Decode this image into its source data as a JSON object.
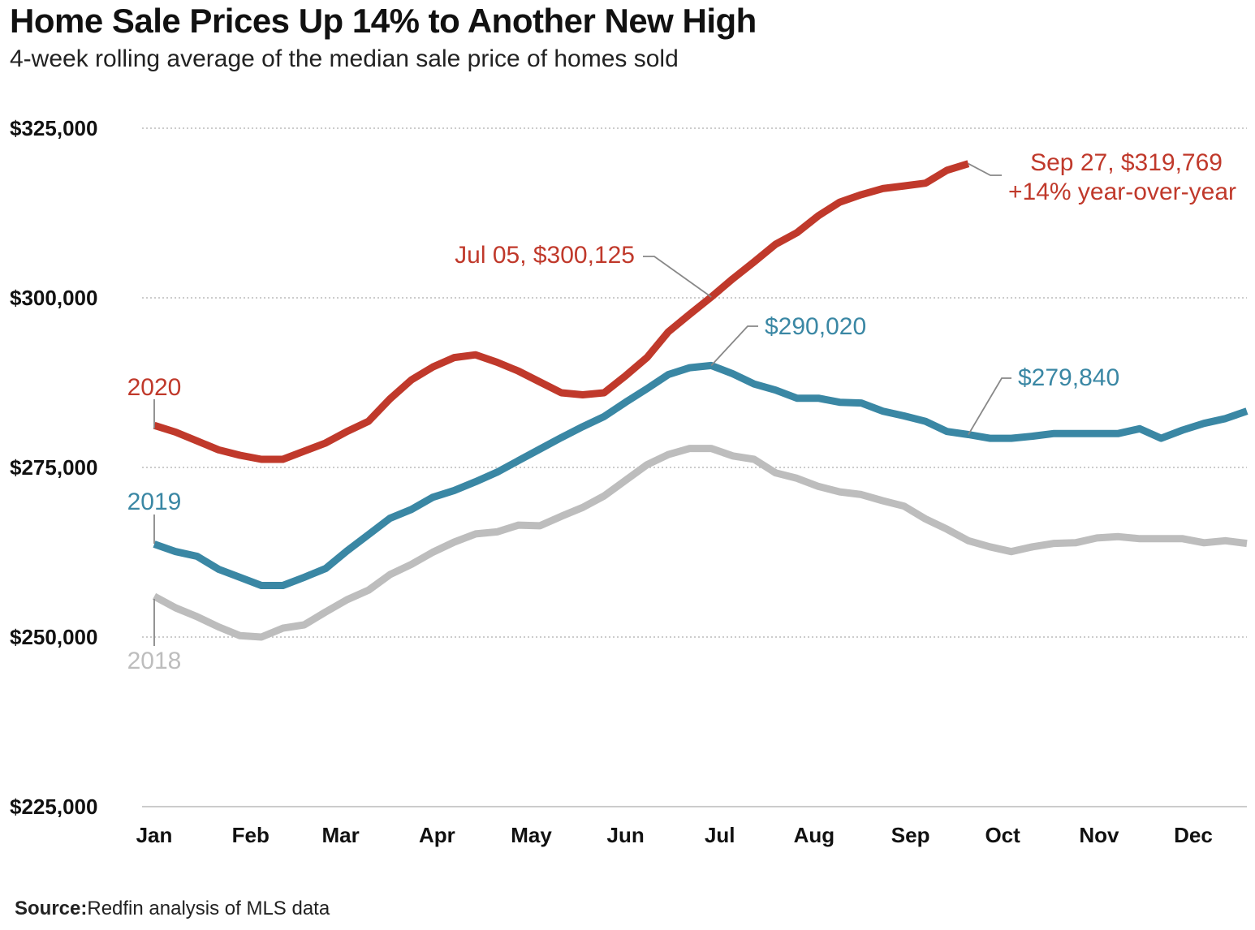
{
  "colors": {
    "2020": "#c0392b",
    "2019": "#3a87a4",
    "2018": "#bdbdbd",
    "grid": "#bbbbbb",
    "leader": "#888888"
  },
  "source": {
    "label": "Source:",
    "text": "Redfin analysis of MLS data"
  },
  "chart_data": {
    "type": "line",
    "title": "Home Sale Prices Up 14% to Another New High",
    "subtitle": "4-week rolling average of the median sale price of homes sold",
    "xlabel": "",
    "ylabel": "",
    "ylim": [
      225000,
      325000
    ],
    "xlim": [
      1,
      52
    ],
    "grid": true,
    "y_ticks": [
      {
        "value": 325000,
        "label": "$325,000"
      },
      {
        "value": 300000,
        "label": "$300,000"
      },
      {
        "value": 275000,
        "label": "$275,000"
      },
      {
        "value": 250000,
        "label": "$250,000"
      },
      {
        "value": 225000,
        "label": "$225,000"
      }
    ],
    "x_ticks": [
      {
        "week": 1,
        "label": "Jan"
      },
      {
        "week": 5.5,
        "label": "Feb"
      },
      {
        "week": 9.7,
        "label": "Mar"
      },
      {
        "week": 14.2,
        "label": "Apr"
      },
      {
        "week": 18.6,
        "label": "May"
      },
      {
        "week": 23,
        "label": "Jun"
      },
      {
        "week": 27.4,
        "label": "Jul"
      },
      {
        "week": 31.8,
        "label": "Aug"
      },
      {
        "week": 36.3,
        "label": "Sep"
      },
      {
        "week": 40.6,
        "label": "Oct"
      },
      {
        "week": 45.1,
        "label": "Nov"
      },
      {
        "week": 49.5,
        "label": "Dec"
      }
    ],
    "series": [
      {
        "name": "2018",
        "label": "2018",
        "x": [
          1,
          2,
          3,
          4,
          5,
          6,
          7,
          8,
          9,
          10,
          11,
          12,
          13,
          14,
          15,
          16,
          17,
          18,
          19,
          20,
          21,
          22,
          23,
          24,
          25,
          26,
          27,
          28,
          29,
          30,
          31,
          32,
          33,
          34,
          35,
          36,
          37,
          38,
          39,
          40,
          41,
          42,
          43,
          44,
          45,
          46,
          47,
          48,
          49,
          50,
          51,
          52
        ],
        "values": [
          256000,
          254300,
          253000,
          251500,
          250200,
          250000,
          251300,
          251800,
          253700,
          255500,
          256900,
          259200,
          260700,
          262500,
          264000,
          265200,
          265500,
          266500,
          266400,
          267800,
          269100,
          270800,
          273100,
          275400,
          276900,
          277800,
          277800,
          276700,
          276200,
          274200,
          273400,
          272200,
          271400,
          271000,
          270100,
          269300,
          267400,
          265900,
          264200,
          263300,
          262600,
          263300,
          263800,
          263900,
          264600,
          264800,
          264500,
          264500,
          264500,
          263900,
          264200,
          263800
        ]
      },
      {
        "name": "2019",
        "label": "2019",
        "x": [
          1,
          2,
          3,
          4,
          5,
          6,
          7,
          8,
          9,
          10,
          11,
          12,
          13,
          14,
          15,
          16,
          17,
          18,
          19,
          20,
          21,
          22,
          23,
          24,
          25,
          26,
          27,
          28,
          29,
          30,
          31,
          32,
          33,
          34,
          35,
          36,
          37,
          38,
          39,
          40,
          41,
          42,
          43,
          44,
          45,
          46,
          47,
          48,
          49,
          50,
          51,
          52
        ],
        "values": [
          263700,
          262600,
          261900,
          260000,
          258800,
          257600,
          257600,
          258800,
          260100,
          262700,
          265100,
          267500,
          268800,
          270600,
          271600,
          272900,
          274300,
          276000,
          277700,
          279400,
          281000,
          282500,
          284600,
          286600,
          288700,
          289700,
          290020,
          288800,
          287300,
          286400,
          285200,
          285200,
          284600,
          284500,
          283300,
          282600,
          281800,
          280300,
          279840,
          279300,
          279300,
          279600,
          280000,
          280000,
          280000,
          280000,
          280700,
          279300,
          280500,
          281500,
          282200,
          283300
        ]
      },
      {
        "name": "2020",
        "label": "2020",
        "x": [
          1,
          2,
          3,
          4,
          5,
          6,
          7,
          8,
          9,
          10,
          11,
          12,
          13,
          14,
          15,
          16,
          17,
          18,
          19,
          20,
          21,
          22,
          23,
          24,
          25,
          26,
          27,
          28,
          29,
          30,
          31,
          32,
          33,
          34,
          35,
          36,
          37,
          38,
          39,
          40
        ],
        "values": [
          281200,
          280200,
          278900,
          277600,
          276800,
          276200,
          276200,
          277400,
          278600,
          280300,
          281800,
          285100,
          287900,
          289800,
          291200,
          291600,
          290500,
          289200,
          287600,
          286000,
          285700,
          286000,
          288500,
          291200,
          295000,
          297600,
          300125,
          302800,
          305300,
          307900,
          309600,
          312100,
          314100,
          315200,
          316100,
          316500,
          316900,
          318800,
          319769,
          null
        ]
      }
    ],
    "annotations": [
      {
        "series": "2020",
        "week": 27,
        "value": 300125,
        "text": "Jul 05, $300,125"
      },
      {
        "series": "2020",
        "week": 39,
        "value": 319769,
        "text": "Sep 27, $319,769",
        "subtext": "+14% year-over-year"
      },
      {
        "series": "2019",
        "week": 27,
        "value": 290020,
        "text": "$290,020"
      },
      {
        "series": "2019",
        "week": 39,
        "value": 279840,
        "text": "$279,840"
      }
    ]
  }
}
